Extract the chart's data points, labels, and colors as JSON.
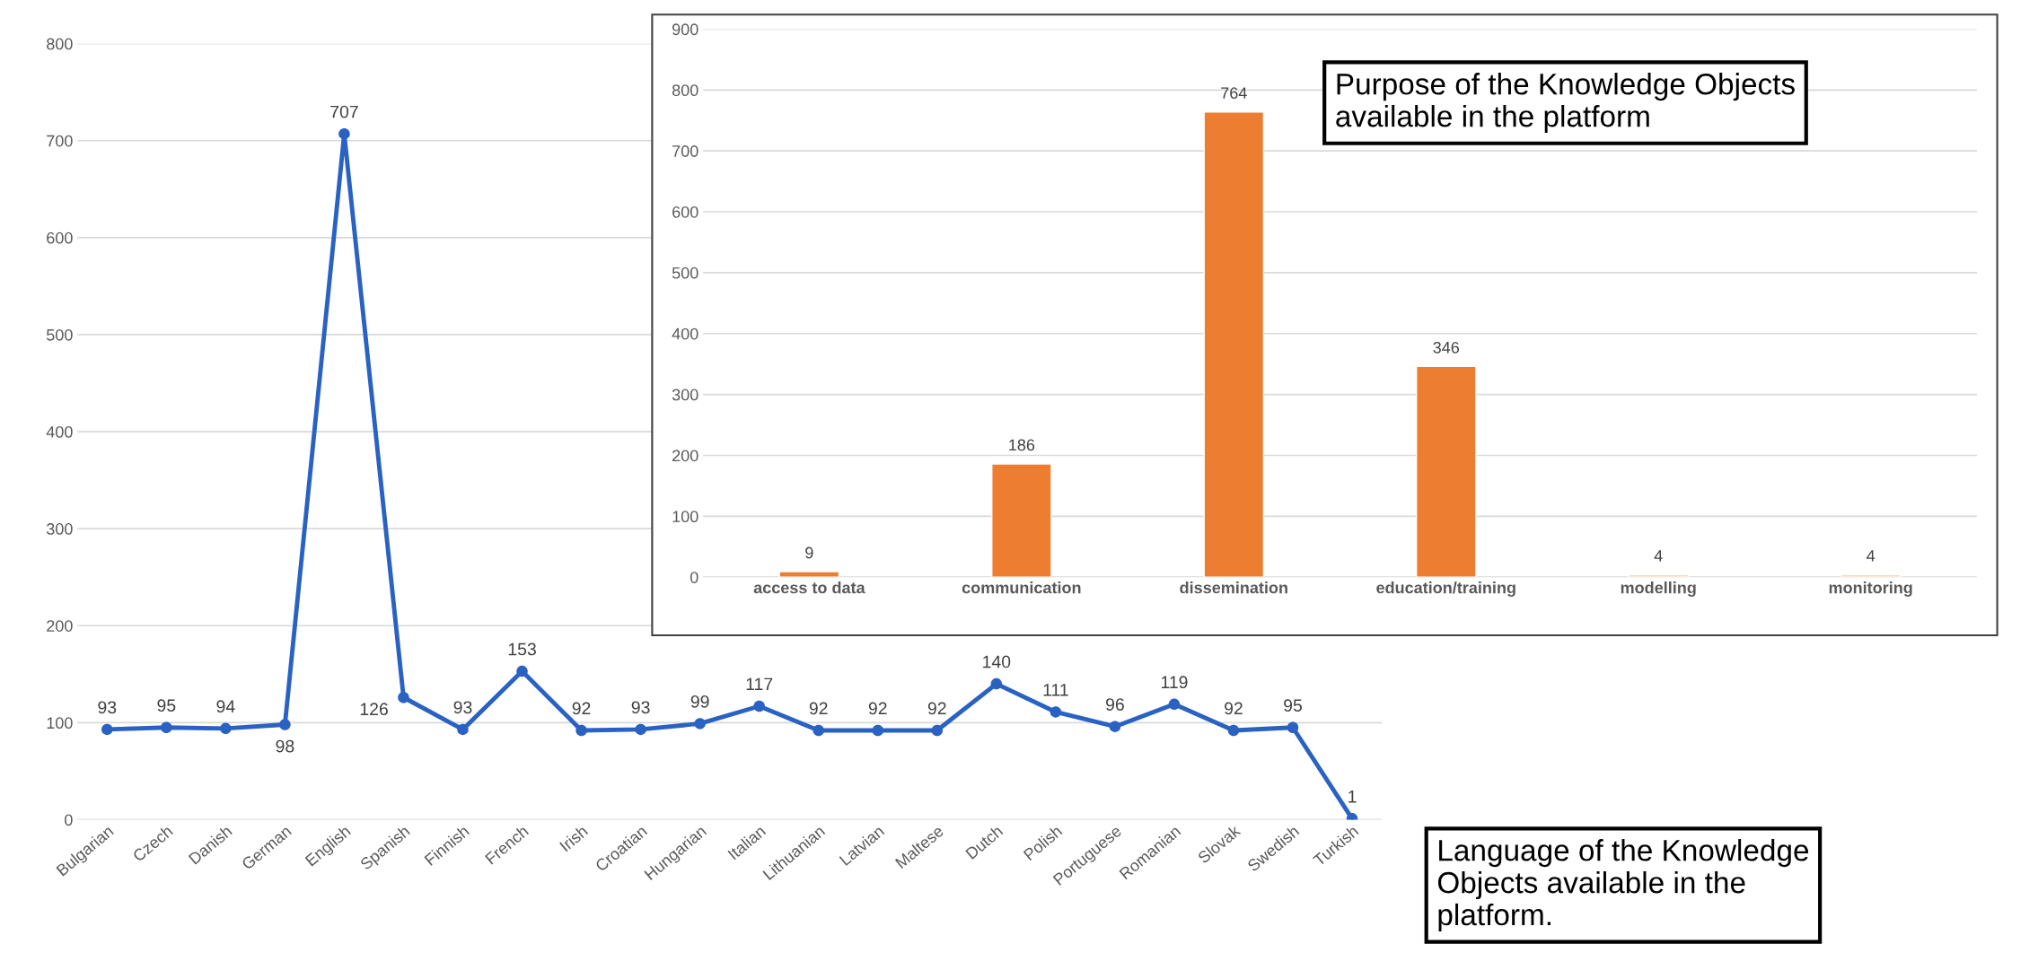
{
  "chart_data": [
    {
      "type": "line",
      "categories": [
        "Bulgarian",
        "Czech",
        "Danish",
        "German",
        "English",
        "Spanish",
        "Finnish",
        "French",
        "Irish",
        "Croatian",
        "Hungarian",
        "Italian",
        "Lithuanian",
        "Latvian",
        "Maltese",
        "Dutch",
        "Polish",
        "Portuguese",
        "Romanian",
        "Slovak",
        "Swedish",
        "Turkish"
      ],
      "values": [
        93,
        95,
        94,
        98,
        707,
        126,
        93,
        153,
        92,
        93,
        99,
        117,
        92,
        92,
        92,
        140,
        111,
        96,
        119,
        92,
        95,
        1
      ],
      "color": "#2a62c4",
      "marker": "circle",
      "line_style": "solid",
      "data_labels": true,
      "ylim": [
        0,
        800
      ],
      "yticks": [
        0,
        100,
        200,
        300,
        400,
        500,
        600,
        700,
        800
      ],
      "grid": "y",
      "annotations": [
        "Language of the Knowledge\nObjects available in the\nplatform."
      ]
    },
    {
      "type": "bar",
      "categories": [
        "access to data",
        "communication",
        "dissemination",
        "education/training",
        "modelling",
        "monitoring"
      ],
      "values": [
        9,
        186,
        764,
        346,
        4,
        4
      ],
      "colors": [
        "#ed7d31",
        "#ed7d31",
        "#ed7d31",
        "#ed7d31",
        "#f8cbad",
        "#f8cbad"
      ],
      "data_labels": true,
      "ylim": [
        0,
        900
      ],
      "yticks": [
        0,
        100,
        200,
        300,
        400,
        500,
        600,
        700,
        800,
        900
      ],
      "grid": "y",
      "annotations": [
        "Purpose of the Knowledge Objects\navailable in the platform"
      ]
    }
  ]
}
